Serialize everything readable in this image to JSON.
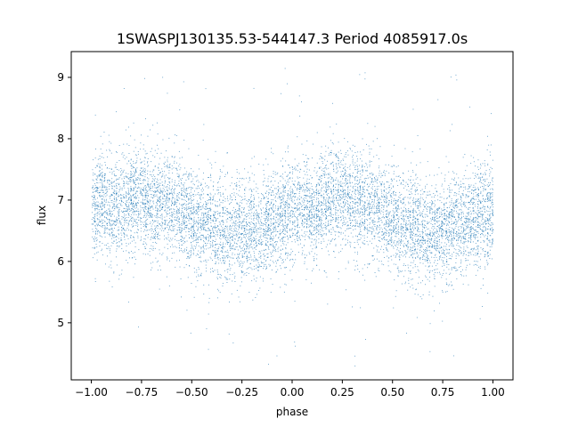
{
  "chart_data": {
    "type": "scatter",
    "title": "1SWASPJ130135.53-544147.3 Period 4085917.0s",
    "xlabel": "phase",
    "ylabel": "flux",
    "xlim": [
      -1.1,
      1.1
    ],
    "ylim": [
      4.07,
      9.42
    ],
    "xticks": [
      -1.0,
      -0.75,
      -0.5,
      -0.25,
      0.0,
      0.25,
      0.5,
      0.75,
      1.0
    ],
    "xtick_labels": [
      "−1.00",
      "−0.75",
      "−0.50",
      "−0.25",
      "0.00",
      "0.25",
      "0.50",
      "0.75",
      "1.00"
    ],
    "yticks": [
      5,
      6,
      7,
      8,
      9
    ],
    "ytick_labels": [
      "5",
      "6",
      "7",
      "8",
      "9"
    ],
    "grid": false,
    "legend": "none",
    "marker_color": "#1f77b4",
    "series": [
      {
        "x_range": [
          -1.0,
          1.0
        ],
        "phase_profile": {
          "phase": [
            0.0,
            0.05,
            0.1,
            0.15,
            0.2,
            0.25,
            0.3,
            0.35,
            0.4,
            0.45,
            0.5,
            0.55,
            0.6,
            0.65,
            0.7,
            0.75,
            0.8,
            0.85,
            0.9,
            0.95,
            1.0
          ],
          "median_flux": [
            6.85,
            6.95,
            6.85,
            6.9,
            7.1,
            7.05,
            6.95,
            6.9,
            6.95,
            6.8,
            6.7,
            6.6,
            6.55,
            6.5,
            6.45,
            6.55,
            6.55,
            6.6,
            6.7,
            6.8,
            6.85
          ],
          "scatter_sigma": 0.42
        },
        "outlier_range": [
          4.3,
          9.2
        ]
      }
    ]
  }
}
